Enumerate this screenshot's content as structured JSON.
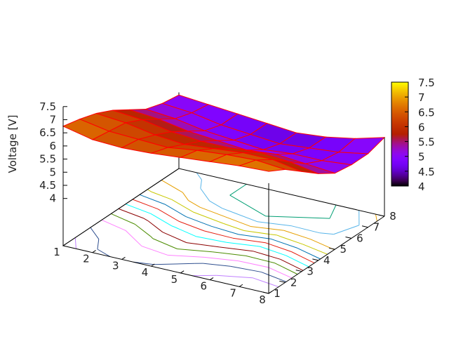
{
  "chart_data": {
    "type": "surface",
    "style": "pm3d surface with red mesh and base-plane contour lines",
    "zlabel": "Voltage [V]",
    "x": [
      1,
      2,
      3,
      4,
      5,
      6,
      7,
      8
    ],
    "y": [
      1,
      2,
      3,
      4,
      5,
      6,
      7,
      8
    ],
    "x_ticks": [
      "1",
      "2",
      "3",
      "4",
      "5",
      "6",
      "7",
      "8"
    ],
    "y_ticks": [
      "1",
      "2",
      "3",
      "4",
      "5",
      "6",
      "7",
      "8"
    ],
    "z_ticks": [
      "4",
      "4.5",
      "5",
      "5.5",
      "6",
      "6.5",
      "7",
      "7.5"
    ],
    "zlim": [
      4,
      7.5
    ],
    "colorbar": {
      "range": [
        4,
        7.5
      ],
      "ticks": [
        "4",
        "4.5",
        "5",
        "5.5",
        "6",
        "6.5",
        "7",
        "7.5"
      ],
      "palette": "black-purple-red-orange-yellow"
    },
    "z_rows_by_y": [
      [
        6.75,
        6.5,
        6.45,
        6.5,
        6.6,
        6.7,
        6.8,
        6.85
      ],
      [
        6.6,
        6.4,
        6.35,
        6.3,
        6.45,
        6.55,
        6.6,
        6.5
      ],
      [
        6.4,
        6.3,
        6.1,
        6.0,
        6.1,
        6.2,
        6.2,
        6.0
      ],
      [
        6.1,
        6.0,
        5.8,
        5.7,
        5.7,
        5.8,
        5.7,
        5.5
      ],
      [
        5.7,
        5.6,
        5.4,
        5.3,
        5.2,
        5.3,
        5.2,
        5.1
      ],
      [
        5.3,
        5.2,
        5.0,
        4.9,
        4.8,
        4.9,
        4.9,
        5.0
      ],
      [
        5.1,
        5.0,
        4.8,
        4.7,
        4.6,
        4.7,
        4.8,
        5.0
      ],
      [
        5.0,
        4.9,
        4.8,
        4.7,
        4.6,
        4.7,
        4.9,
        5.2
      ]
    ],
    "mesh_color": "#ff0000",
    "contour_colors": [
      "#9400d3",
      "#009e73",
      "#56b4e9",
      "#e69f00",
      "#c8c800",
      "#0072b2",
      "#e51e10",
      "#00ffff",
      "#8b0000",
      "#4b8b00",
      "#ff80ff",
      "#2f4f8f",
      "#c080ff",
      "#008060"
    ]
  }
}
